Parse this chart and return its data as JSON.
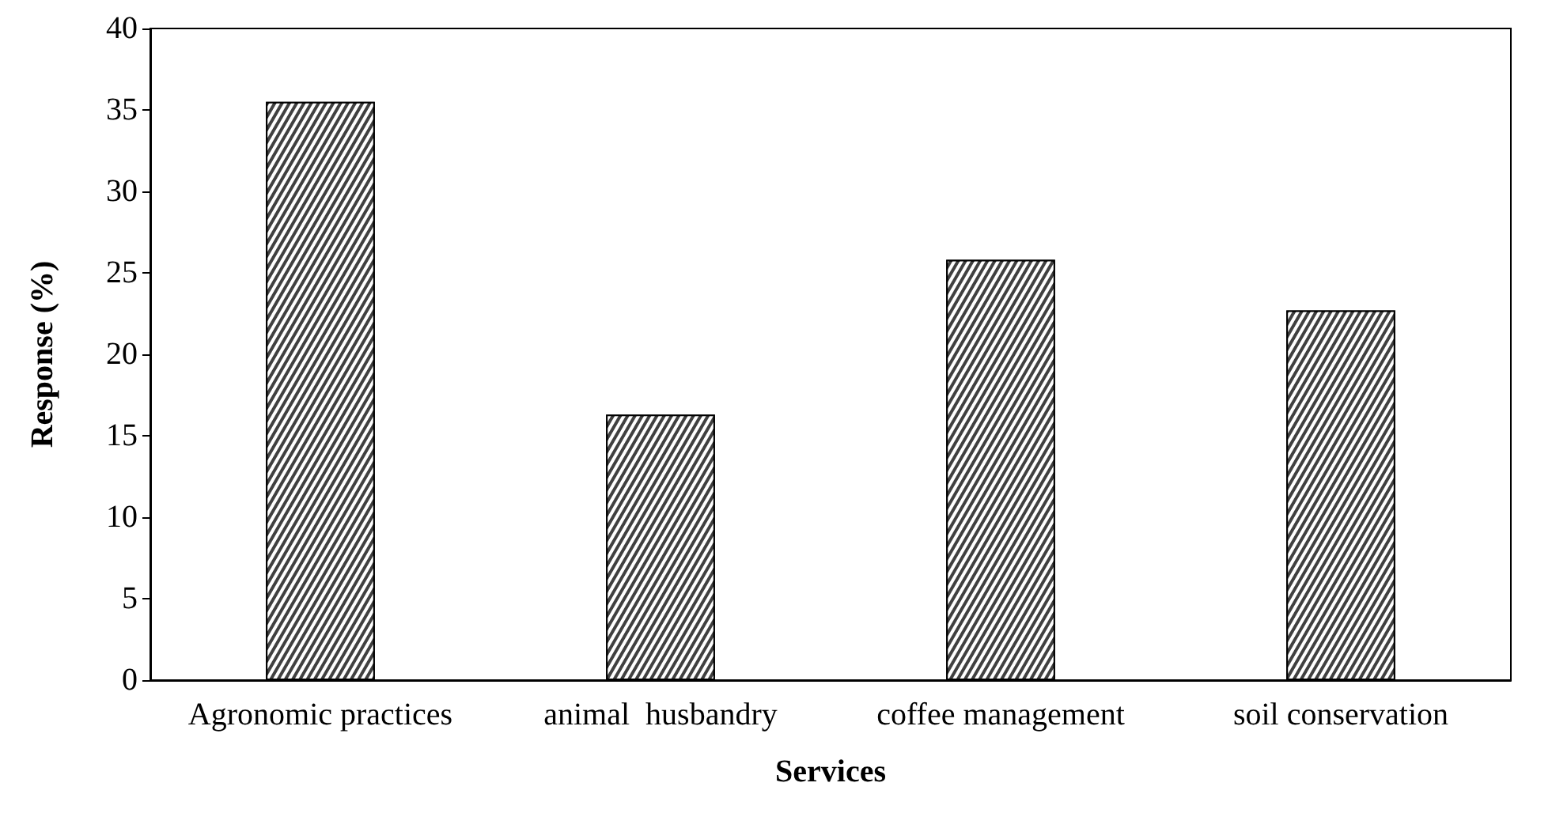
{
  "chart_data": {
    "type": "bar",
    "xlabel": "Services",
    "ylabel": "Response (%)",
    "categories": [
      "Agronomic practices",
      "animal  husbandry",
      "coffee management",
      "soil conservation"
    ],
    "values": [
      35.5,
      16.3,
      25.8,
      22.7
    ],
    "color": "#404040",
    "ylim": [
      0,
      40
    ],
    "yticks": [
      0,
      5,
      10,
      15,
      20,
      25,
      30,
      35,
      40
    ],
    "grid": false
  }
}
